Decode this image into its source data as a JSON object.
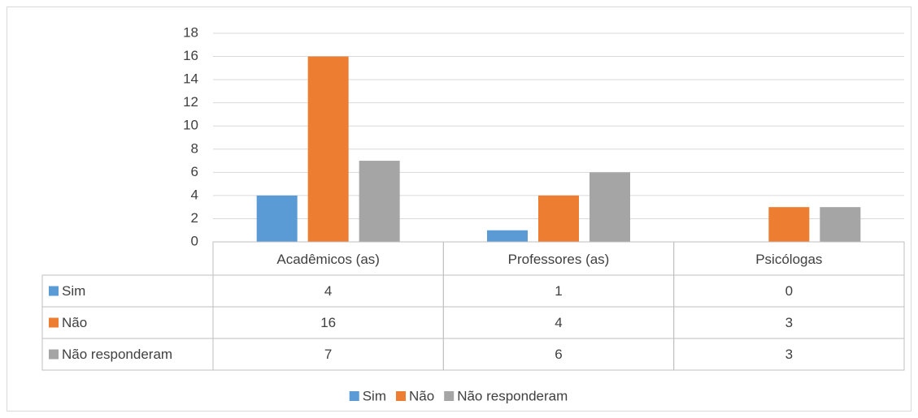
{
  "chart_data": {
    "type": "bar",
    "categories": [
      "Acadêmicos (as)",
      "Professores (as)",
      "Psicólogas"
    ],
    "series": [
      {
        "name": "Sim",
        "color": "#5b9bd5",
        "values": [
          4,
          1,
          0
        ]
      },
      {
        "name": "Não",
        "color": "#ed7d31",
        "values": [
          16,
          4,
          3
        ]
      },
      {
        "name": "Não responderam",
        "color": "#a5a5a5",
        "values": [
          7,
          6,
          3
        ]
      }
    ],
    "ylim": [
      0,
      18
    ],
    "yticks": [
      0,
      2,
      4,
      6,
      8,
      10,
      12,
      14,
      16,
      18
    ],
    "grid": true,
    "data_table": true,
    "legend": "bottom"
  }
}
